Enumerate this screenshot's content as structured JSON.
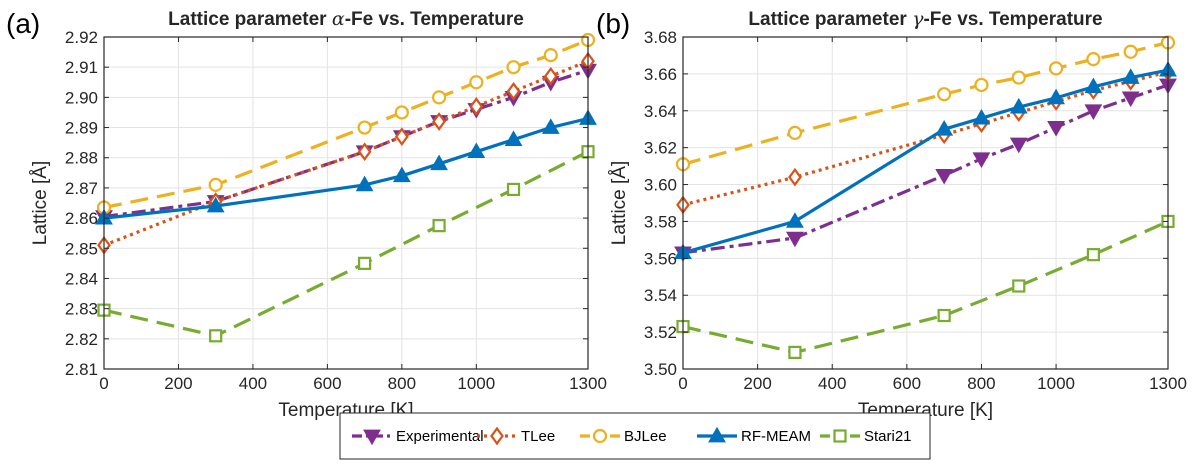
{
  "chart_data": [
    {
      "type": "line",
      "panel_label": "(a)",
      "title": "Lattice parameter α-Fe vs. Temperature",
      "title_parts": [
        "Lattice parameter ",
        "α",
        "-Fe vs. Temperature"
      ],
      "xlabel": "Temperature [K]",
      "ylabel": "Lattice [Å]",
      "xlim": [
        0,
        1300
      ],
      "ylim": [
        2.81,
        2.92
      ],
      "xticks": [
        0,
        200,
        400,
        600,
        800,
        1000,
        1300
      ],
      "xtick_labels": [
        "0",
        "200",
        "400",
        "600",
        "800",
        "1000",
        "1300"
      ],
      "yticks": [
        2.81,
        2.82,
        2.83,
        2.84,
        2.85,
        2.86,
        2.87,
        2.88,
        2.89,
        2.9,
        2.91,
        2.92
      ],
      "ytick_labels": [
        "2.81",
        "2.82",
        "2.83",
        "2.84",
        "2.85",
        "2.86",
        "2.87",
        "2.88",
        "2.89",
        "2.90",
        "2.91",
        "2.92"
      ],
      "grid": true,
      "series": [
        {
          "name": "Experimental",
          "x": [
            0,
            300,
            700,
            800,
            900,
            1000,
            1100,
            1200,
            1300
          ],
          "y": [
            2.8605,
            2.8655,
            2.882,
            2.887,
            2.892,
            2.896,
            2.9,
            2.905,
            2.909
          ]
        },
        {
          "name": "TLee",
          "x": [
            0,
            300,
            700,
            800,
            900,
            1000,
            1100,
            1200,
            1300
          ],
          "y": [
            2.851,
            2.8655,
            2.882,
            2.887,
            2.892,
            2.897,
            2.902,
            2.907,
            2.912
          ]
        },
        {
          "name": "BJLee",
          "x": [
            0,
            300,
            700,
            800,
            900,
            1000,
            1100,
            1200,
            1300
          ],
          "y": [
            2.8635,
            2.871,
            2.89,
            2.895,
            2.9,
            2.905,
            2.91,
            2.914,
            2.919
          ]
        },
        {
          "name": "RF-MEAM",
          "x": [
            0,
            300,
            700,
            800,
            900,
            1000,
            1100,
            1200,
            1300
          ],
          "y": [
            2.86,
            2.864,
            2.871,
            2.874,
            2.878,
            2.882,
            2.886,
            2.89,
            2.893
          ]
        },
        {
          "name": "Stari21",
          "x": [
            0,
            300,
            700,
            900,
            1100,
            1300
          ],
          "y": [
            2.8295,
            2.821,
            2.845,
            2.8575,
            2.8695,
            2.882
          ]
        }
      ]
    },
    {
      "type": "line",
      "panel_label": "(b)",
      "title": "Lattice parameter γ-Fe vs. Temperature",
      "title_parts": [
        "Lattice parameter ",
        "γ",
        "-Fe vs. Temperature"
      ],
      "xlabel": "Temperature [K]",
      "ylabel": "Lattice [Å]",
      "xlim": [
        0,
        1300
      ],
      "ylim": [
        3.5,
        3.68
      ],
      "xticks": [
        0,
        200,
        400,
        600,
        800,
        1000,
        1300
      ],
      "xtick_labels": [
        "0",
        "200",
        "400",
        "600",
        "800",
        "1000",
        "1300"
      ],
      "yticks": [
        3.5,
        3.52,
        3.54,
        3.56,
        3.58,
        3.6,
        3.62,
        3.64,
        3.66,
        3.68
      ],
      "ytick_labels": [
        "3.50",
        "3.52",
        "3.54",
        "3.56",
        "3.58",
        "3.60",
        "3.62",
        "3.64",
        "3.66",
        "3.68"
      ],
      "grid": true,
      "series": [
        {
          "name": "Experimental",
          "x": [
            0,
            300,
            700,
            800,
            900,
            1000,
            1100,
            1200,
            1300
          ],
          "y": [
            3.563,
            3.571,
            3.605,
            3.614,
            3.622,
            3.631,
            3.64,
            3.647,
            3.654
          ]
        },
        {
          "name": "TLee",
          "x": [
            0,
            300,
            700,
            800,
            900,
            1000,
            1100,
            1200,
            1300
          ],
          "y": [
            3.589,
            3.604,
            3.627,
            3.633,
            3.639,
            3.645,
            3.651,
            3.656,
            3.661
          ]
        },
        {
          "name": "BJLee",
          "x": [
            0,
            300,
            700,
            800,
            900,
            1000,
            1100,
            1200,
            1300
          ],
          "y": [
            3.611,
            3.628,
            3.649,
            3.654,
            3.658,
            3.663,
            3.668,
            3.672,
            3.677
          ]
        },
        {
          "name": "RF-MEAM",
          "x": [
            0,
            300,
            700,
            800,
            900,
            1000,
            1100,
            1200,
            1300
          ],
          "y": [
            3.563,
            3.58,
            3.63,
            3.636,
            3.642,
            3.647,
            3.653,
            3.658,
            3.662
          ]
        },
        {
          "name": "Stari21",
          "x": [
            0,
            300,
            700,
            900,
            1100,
            1300
          ],
          "y": [
            3.523,
            3.509,
            3.529,
            3.545,
            3.562,
            3.58
          ]
        }
      ]
    }
  ],
  "legend": {
    "placement": "bottom-center",
    "entries": [
      "Experimental",
      "TLee",
      "BJLee",
      "RF-MEAM",
      "Stari21"
    ]
  },
  "styles": {
    "Experimental": {
      "color": "#7E2F8E",
      "dash": "14 5 4 5",
      "marker": "triangle-down",
      "marker_fill": "#7E2F8E"
    },
    "TLee": {
      "color": "#D95319",
      "dash": "3 4",
      "marker": "diamond",
      "marker_fill": "#ffffff"
    },
    "BJLee": {
      "color": "#EDB120",
      "dash": "18 9",
      "marker": "circle",
      "marker_fill": "#ffffff"
    },
    "RF-MEAM": {
      "color": "#0072BD",
      "dash": "",
      "marker": "triangle-up",
      "marker_fill": "#0072BD"
    },
    "Stari21": {
      "color": "#77AC30",
      "dash": "18 9",
      "marker": "square",
      "marker_fill": "#ffffff"
    }
  }
}
